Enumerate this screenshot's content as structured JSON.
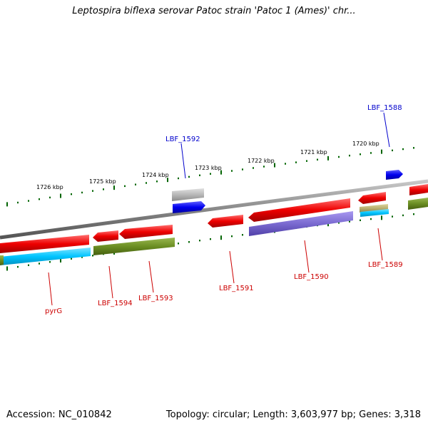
{
  "title": "Leptospira biflexa serovar Patoc strain 'Patoc 1 (Ames)' chr...",
  "footer": {
    "accession": "Accession: NC_010842",
    "summary": "Topology: circular; Length: 3,603,977 bp; Genes: 3,318"
  },
  "scale_labels": [
    "1726 kbp",
    "1725 kbp",
    "1724 kbp",
    "1723 kbp",
    "1722 kbp",
    "1721 kbp",
    "1720 kbp"
  ],
  "gene_labels": [
    {
      "text": "LBF_1588",
      "strand": "forward"
    },
    {
      "text": "LBF_1592",
      "strand": "forward"
    },
    {
      "text": "LBF_1589",
      "strand": "reverse"
    },
    {
      "text": "LBF_1590",
      "strand": "reverse"
    },
    {
      "text": "LBF_1591",
      "strand": "reverse"
    },
    {
      "text": "LBF_1593",
      "strand": "reverse"
    },
    {
      "text": "LBF_1594",
      "strand": "reverse"
    },
    {
      "text": "pyrG",
      "strand": "reverse"
    }
  ],
  "colors": {
    "forward_label": "#0000cc",
    "reverse_label": "#cc0000",
    "gene_red": "#ee0000",
    "gene_blue": "#0000ee",
    "gene_gray": "#b0b0b0",
    "gene_purple": "#7a6ad0",
    "gene_olive": "#6b8e23",
    "gene_cyan": "#00c4ff",
    "gene_khaki": "#b8b070",
    "backbone": "#888888",
    "tick": "#006400"
  }
}
